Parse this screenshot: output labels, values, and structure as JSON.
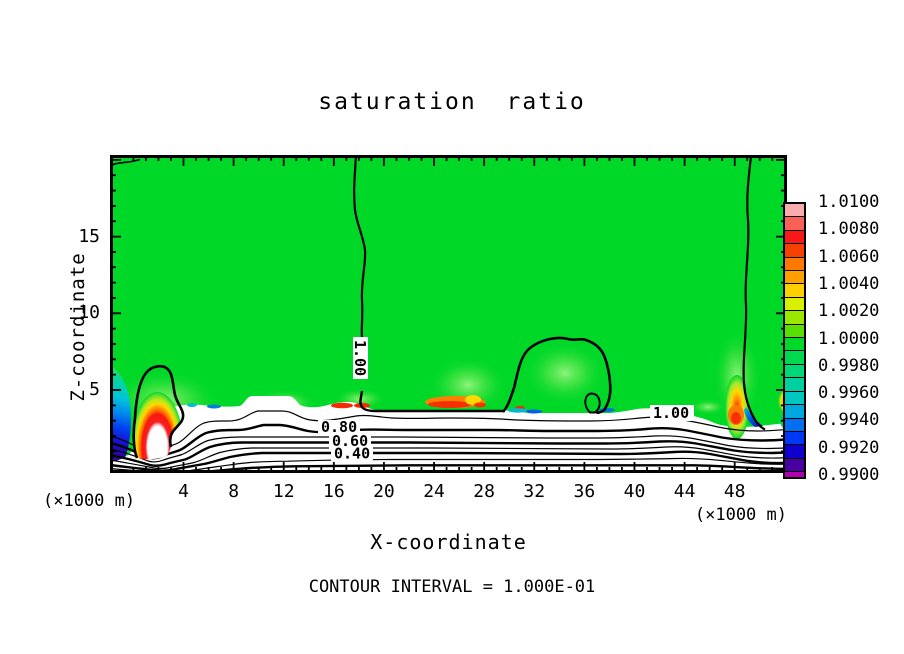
{
  "chart_data": {
    "type": "heatmap",
    "subtype": "filled contour cross-section with line contours",
    "title": "saturation ratio",
    "xlabel": "X-coordinate",
    "ylabel": "Z-coordinate",
    "x_axis_units": "(×1000 m)",
    "y_axis_units": "(×1000 m)",
    "footnote": "CONTOUR INTERVAL = 1.000E-01",
    "x_tick_labels": [
      "4",
      "8",
      "12",
      "16",
      "20",
      "24",
      "28",
      "32",
      "36",
      "40",
      "44",
      "48"
    ],
    "y_tick_labels": [
      "15",
      "10",
      "5"
    ],
    "xlim": [
      0,
      50
    ],
    "ylim": [
      0,
      20
    ],
    "grid": false,
    "legend_position": "right colorbar",
    "field_background_value": "≈1.000 (green)",
    "contour_line_labels": {
      "upper_field_line": "1.00",
      "lower_right_line": "1.00",
      "band_80": "0.80",
      "band_60": "0.60",
      "band_40": "0.40"
    },
    "colorbar": {
      "tick_labels": [
        "1.0100",
        "1.0080",
        "1.0060",
        "1.0040",
        "1.0020",
        "1.0000",
        "0.9980",
        "0.9960",
        "0.9940",
        "0.9920",
        "0.9900"
      ],
      "segment_colors_top_to_bottom": [
        "#f8acac",
        "#f86058",
        "#f81818",
        "#f54000",
        "#ff7800",
        "#ffa000",
        "#ffd000",
        "#d8f000",
        "#98e800",
        "#58e000",
        "#00d828",
        "#00d850",
        "#00d878",
        "#00d0a0",
        "#00c8c0",
        "#00a8e0",
        "#0070f0",
        "#0038f8",
        "#1000d0",
        "#4800a0"
      ],
      "under_range_color": "#b000b0"
    },
    "colors": {
      "field_green": "#00d828",
      "contour_lines": "#000000",
      "below_cloud_region": "#ffffff"
    }
  }
}
